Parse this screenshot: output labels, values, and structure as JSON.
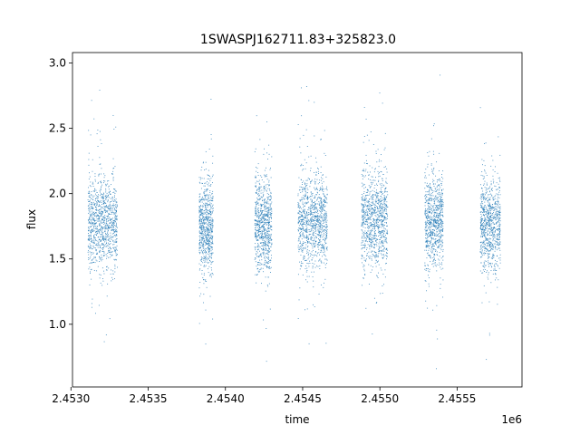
{
  "chart_data": {
    "type": "scatter",
    "title": "1SWASPJ162711.83+325823.0",
    "xlabel": "time",
    "ylabel": "flux",
    "x_offset_label": "1e6",
    "xlim": [
      2453010,
      2455920
    ],
    "ylim": [
      0.52,
      3.08
    ],
    "x_ticks": [
      2453000,
      2453500,
      2454000,
      2454500,
      2455000,
      2455500
    ],
    "x_tick_labels": [
      "2.4530",
      "2.4535",
      "2.4540",
      "2.4545",
      "2.4550",
      "2.4555"
    ],
    "y_ticks": [
      1.0,
      1.5,
      2.0,
      2.5,
      3.0
    ],
    "y_tick_labels": [
      "1.0",
      "1.5",
      "2.0",
      "2.5",
      "3.0"
    ],
    "grid": false,
    "marker_color": "#1f77b4",
    "series": [
      {
        "observing_seasons": [
          {
            "t_start": 2453110,
            "t_end": 2453300,
            "flux_center": 1.78,
            "flux_min": 0.63,
            "flux_max": 2.83
          },
          {
            "t_start": 2453830,
            "t_end": 2453920,
            "flux_center": 1.75,
            "flux_min": 0.66,
            "flux_max": 2.75
          },
          {
            "t_start": 2454190,
            "t_end": 2454300,
            "flux_center": 1.76,
            "flux_min": 0.7,
            "flux_max": 2.6
          },
          {
            "t_start": 2454470,
            "t_end": 2454660,
            "flux_center": 1.79,
            "flux_min": 0.65,
            "flux_max": 2.85
          },
          {
            "t_start": 2454880,
            "t_end": 2455050,
            "flux_center": 1.8,
            "flux_min": 0.64,
            "flux_max": 2.78
          },
          {
            "t_start": 2455290,
            "t_end": 2455410,
            "flux_center": 1.79,
            "flux_min": 0.63,
            "flux_max": 2.93
          },
          {
            "t_start": 2455650,
            "t_end": 2455780,
            "flux_center": 1.76,
            "flux_min": 0.62,
            "flux_max": 2.95
          }
        ]
      }
    ]
  }
}
